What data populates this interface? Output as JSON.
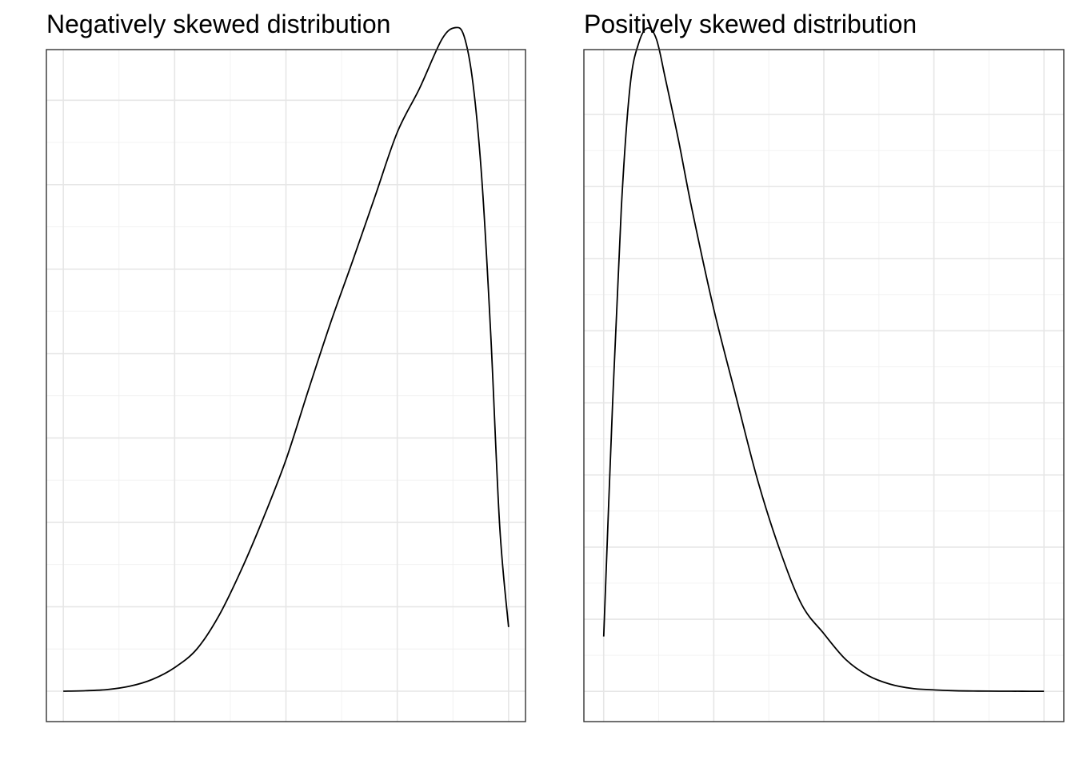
{
  "chart_data": [
    {
      "type": "line",
      "title": "Negatively skewed distribution",
      "xlabel": "",
      "ylabel": "",
      "axis_ticks_shown": false,
      "grid": true,
      "xlim": [
        -0.038,
        1.038
      ],
      "ylim": [
        -0.18,
        3.8
      ],
      "x_gridlines": [
        0.0,
        0.25,
        0.5,
        0.75,
        1.0
      ],
      "y_gridlines": [
        0.0,
        0.5,
        1.0,
        1.5,
        2.0,
        2.5,
        3.0,
        3.5
      ],
      "series": [
        {
          "x": [
            0.0,
            0.05,
            0.1,
            0.15,
            0.2,
            0.25,
            0.3,
            0.35,
            0.4,
            0.45,
            0.5,
            0.55,
            0.6,
            0.65,
            0.7,
            0.75,
            0.8,
            0.85,
            0.88,
            0.9,
            0.92,
            0.94,
            0.96,
            0.98,
            1.0
          ],
          "y": [
            0.0,
            0.003,
            0.01,
            0.03,
            0.07,
            0.14,
            0.25,
            0.45,
            0.72,
            1.03,
            1.37,
            1.78,
            2.18,
            2.55,
            2.93,
            3.31,
            3.57,
            3.86,
            3.93,
            3.88,
            3.6,
            3.03,
            2.11,
            0.98,
            0.38
          ],
          "color": "#000000"
        }
      ]
    },
    {
      "type": "line",
      "title": "Positively skewed distribution",
      "xlabel": "",
      "ylabel": "",
      "axis_ticks_shown": false,
      "grid": true,
      "xlim": [
        -0.045,
        1.045
      ],
      "ylim": [
        -0.21,
        4.45
      ],
      "x_gridlines": [
        0.0,
        0.25,
        0.5,
        0.75,
        1.0
      ],
      "y_gridlines": [
        0.0,
        0.5,
        1.0,
        1.5,
        2.0,
        2.5,
        3.0,
        3.5,
        4.0
      ],
      "series": [
        {
          "x": [
            0.0,
            0.02,
            0.04,
            0.06,
            0.08,
            0.1,
            0.12,
            0.14,
            0.17,
            0.2,
            0.25,
            0.3,
            0.35,
            0.4,
            0.45,
            0.5,
            0.55,
            0.6,
            0.65,
            0.7,
            0.75,
            0.8,
            0.85,
            0.9,
            0.95,
            1.0
          ],
          "y": [
            0.38,
            1.98,
            3.35,
            4.2,
            4.5,
            4.6,
            4.52,
            4.25,
            3.82,
            3.35,
            2.65,
            2.05,
            1.46,
            0.98,
            0.6,
            0.4,
            0.22,
            0.11,
            0.05,
            0.02,
            0.01,
            0.004,
            0.002,
            0.001,
            0.0005,
            0.0
          ],
          "color": "#000000"
        }
      ]
    }
  ]
}
